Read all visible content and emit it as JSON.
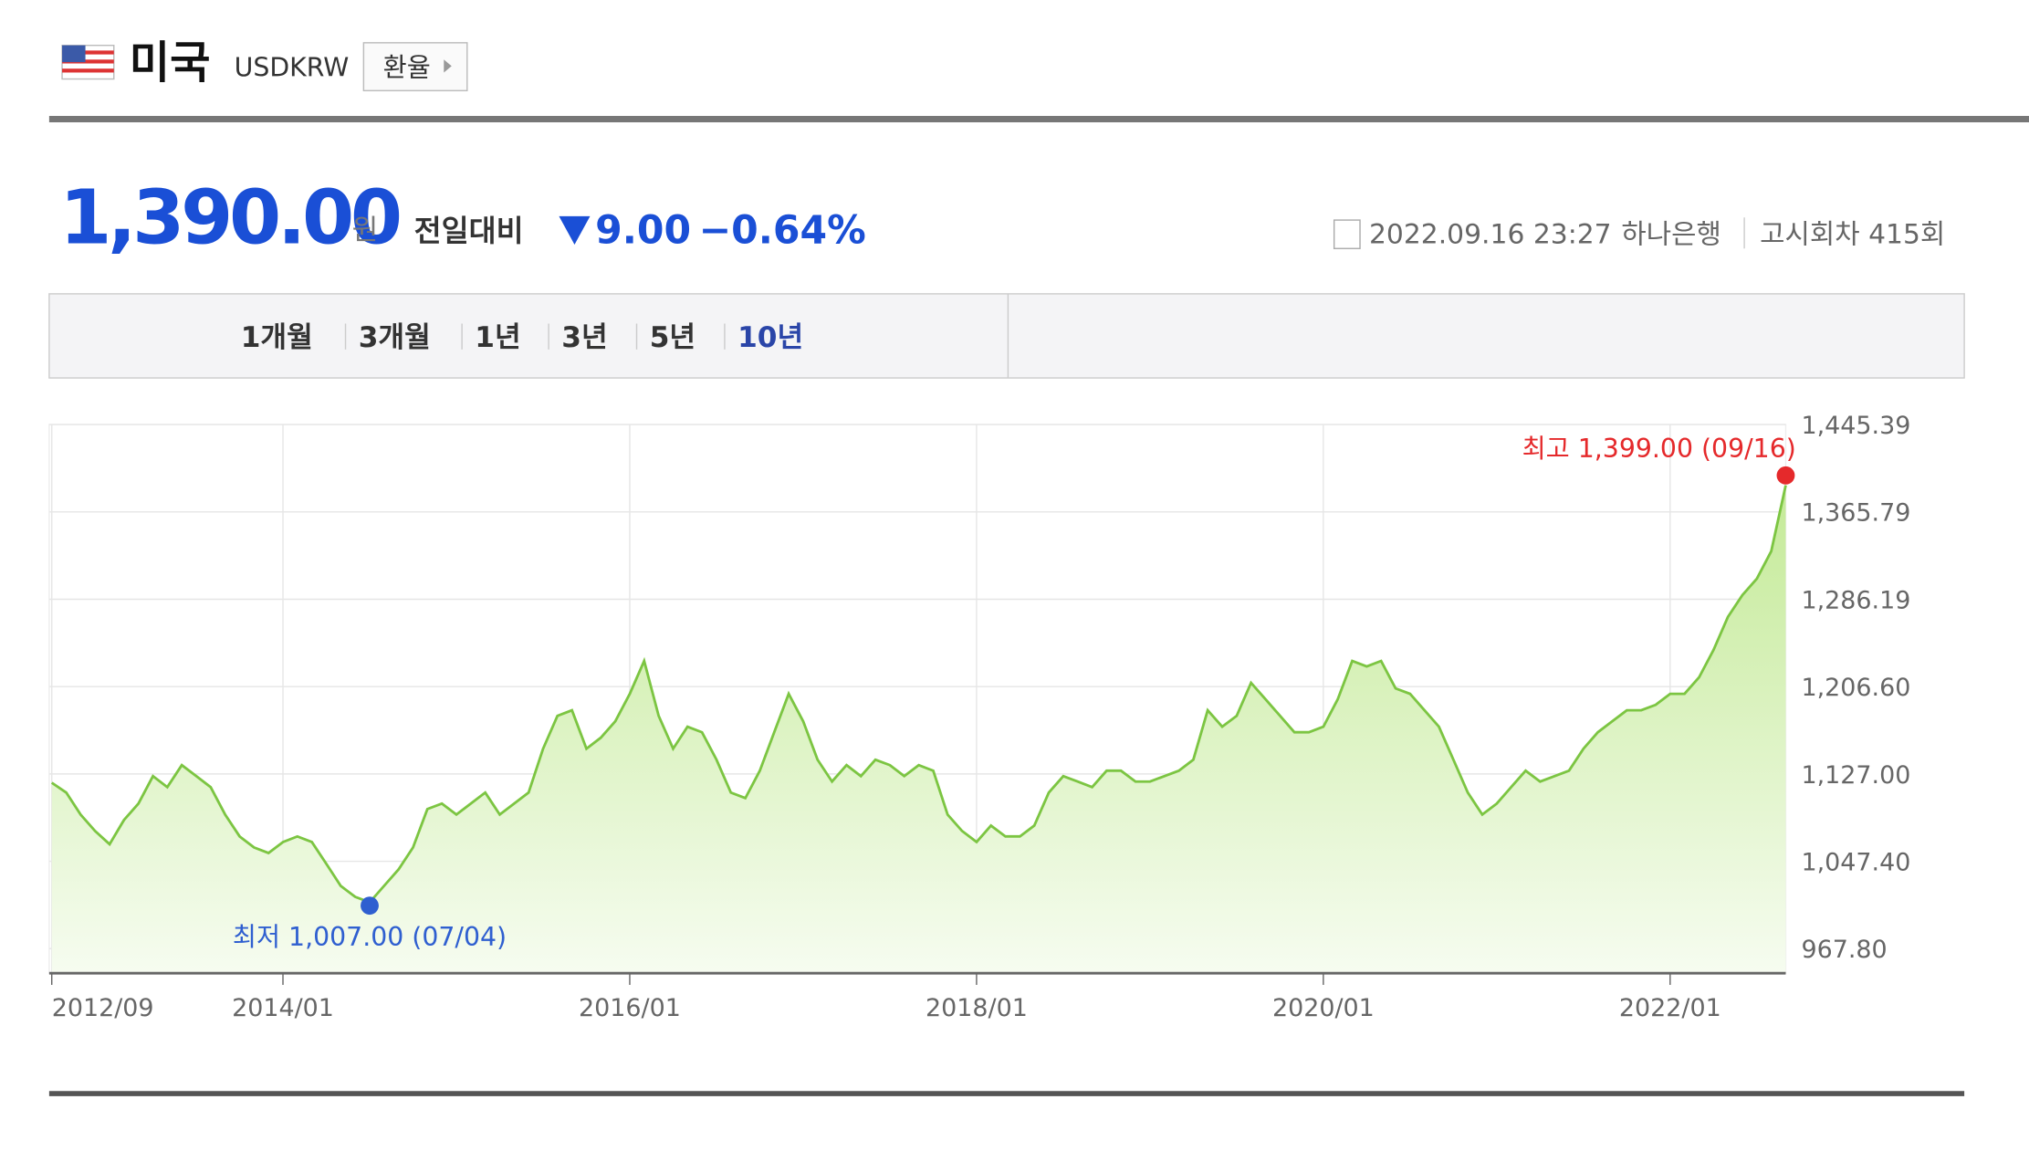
{
  "header": {
    "country": "미국",
    "code": "USDKRW",
    "button": "환율"
  },
  "quote": {
    "price": "1,390.00",
    "unit": "원",
    "change_label": "전일대비",
    "change": "9.00",
    "change_pct": "−0.64%",
    "datetime": "2022.09.16 23:27",
    "bank": "하나은행",
    "notice": "고시회차 415회"
  },
  "tabs": [
    "1개월",
    "3개월",
    "1년",
    "3년",
    "5년",
    "10년"
  ],
  "chart_data": {
    "type": "line",
    "x": [
      "2012/09",
      "2012/10",
      "2012/11",
      "2012/12",
      "2013/01",
      "2013/02",
      "2013/03",
      "2013/04",
      "2013/05",
      "2013/06",
      "2013/07",
      "2013/08",
      "2013/09",
      "2013/10",
      "2013/11",
      "2013/12",
      "2014/01",
      "2014/02",
      "2014/03",
      "2014/04",
      "2014/05",
      "2014/06",
      "2014/07",
      "2014/08",
      "2014/09",
      "2014/10",
      "2014/11",
      "2014/12",
      "2015/01",
      "2015/02",
      "2015/03",
      "2015/04",
      "2015/05",
      "2015/06",
      "2015/07",
      "2015/08",
      "2015/09",
      "2015/10",
      "2015/11",
      "2015/12",
      "2016/01",
      "2016/02",
      "2016/03",
      "2016/04",
      "2016/05",
      "2016/06",
      "2016/07",
      "2016/08",
      "2016/09",
      "2016/10",
      "2016/11",
      "2016/12",
      "2017/01",
      "2017/02",
      "2017/03",
      "2017/04",
      "2017/05",
      "2017/06",
      "2017/07",
      "2017/08",
      "2017/09",
      "2017/10",
      "2017/11",
      "2017/12",
      "2018/01",
      "2018/02",
      "2018/03",
      "2018/04",
      "2018/05",
      "2018/06",
      "2018/07",
      "2018/08",
      "2018/09",
      "2018/10",
      "2018/11",
      "2018/12",
      "2019/01",
      "2019/02",
      "2019/03",
      "2019/04",
      "2019/05",
      "2019/06",
      "2019/07",
      "2019/08",
      "2019/09",
      "2019/10",
      "2019/11",
      "2019/12",
      "2020/01",
      "2020/02",
      "2020/03",
      "2020/04",
      "2020/05",
      "2020/06",
      "2020/07",
      "2020/08",
      "2020/09",
      "2020/10",
      "2020/11",
      "2020/12",
      "2021/01",
      "2021/02",
      "2021/03",
      "2021/04",
      "2021/05",
      "2021/06",
      "2021/07",
      "2021/08",
      "2021/09",
      "2021/10",
      "2021/11",
      "2021/12",
      "2022/01",
      "2022/02",
      "2022/03",
      "2022/04",
      "2022/05",
      "2022/06",
      "2022/07",
      "2022/08",
      "2022/09"
    ],
    "series": [
      {
        "color": "#7cc542",
        "values": [
          1119,
          1110,
          1090,
          1075,
          1063,
          1085,
          1100,
          1125,
          1115,
          1135,
          1125,
          1115,
          1090,
          1070,
          1060,
          1055,
          1065,
          1070,
          1065,
          1045,
          1025,
          1015,
          1010,
          1025,
          1040,
          1060,
          1095,
          1100,
          1090,
          1100,
          1110,
          1090,
          1100,
          1110,
          1150,
          1180,
          1185,
          1150,
          1160,
          1175,
          1200,
          1230,
          1180,
          1150,
          1170,
          1165,
          1140,
          1110,
          1105,
          1130,
          1165,
          1200,
          1175,
          1140,
          1120,
          1135,
          1125,
          1140,
          1135,
          1125,
          1135,
          1130,
          1090,
          1075,
          1065,
          1080,
          1070,
          1070,
          1080,
          1110,
          1125,
          1120,
          1115,
          1130,
          1130,
          1120,
          1120,
          1125,
          1130,
          1140,
          1185,
          1170,
          1180,
          1210,
          1195,
          1180,
          1165,
          1165,
          1170,
          1195,
          1230,
          1225,
          1230,
          1205,
          1200,
          1185,
          1170,
          1140,
          1110,
          1090,
          1100,
          1115,
          1130,
          1120,
          1125,
          1130,
          1150,
          1165,
          1175,
          1185,
          1185,
          1190,
          1200,
          1200,
          1215,
          1240,
          1270,
          1290,
          1305,
          1330,
          1390
        ]
      }
    ],
    "high": {
      "label": "최고 1,399.00 (09/16)",
      "x": "2022/09",
      "value": 1399
    },
    "low": {
      "label": "최저 1,007.00 (07/04)",
      "x": "2014/07",
      "value": 1007
    },
    "xlim": [
      "2012/09",
      "2022/09"
    ],
    "xticks": [
      "2012/09",
      "2014/01",
      "2016/01",
      "2018/01",
      "2020/01",
      "2022/01"
    ],
    "ylim": [
      945.4,
      1445.39
    ],
    "yticks": [
      {
        "value": 967.8,
        "label": "967.80"
      },
      {
        "value": 1047.4,
        "label": "1,047.40"
      },
      {
        "value": 1127,
        "label": "1,127.00"
      },
      {
        "value": 1206.6,
        "label": "1,206.60"
      },
      {
        "value": 1286.19,
        "label": "1,286.19"
      },
      {
        "value": 1365.79,
        "label": "1,365.79"
      },
      {
        "value": 1445.39,
        "label": "1,445.39"
      }
    ],
    "grid": true
  }
}
